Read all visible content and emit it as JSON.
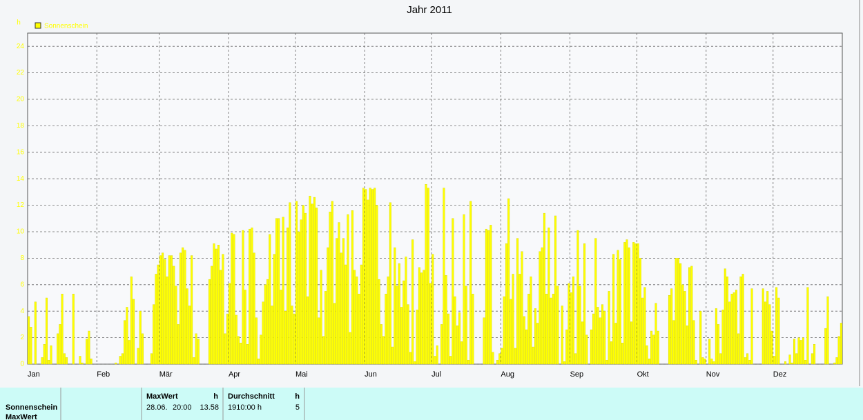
{
  "chart_data": {
    "type": "bar",
    "title": "Jahr 2011",
    "y_unit": "h",
    "legend": "Sonnenschein",
    "color": "#ffff00",
    "categories": [
      "Jan",
      "Feb",
      "Mär",
      "Apr",
      "Mai",
      "Jun",
      "Jul",
      "Aug",
      "Sep",
      "Okt",
      "Nov",
      "Dez"
    ],
    "values": [
      [
        3.6,
        2.8,
        0,
        4.7,
        0,
        0,
        0.5,
        1.5,
        5,
        0.3,
        1.4,
        0,
        0,
        2.3,
        3,
        5.3,
        0.8,
        0.5,
        0,
        0,
        5.3,
        0,
        0,
        0.6,
        0.1,
        0,
        1.9,
        2.5,
        0.4,
        0,
        0
      ],
      [
        0,
        0,
        0,
        0,
        0,
        0,
        0,
        0,
        0.1,
        0,
        0.6,
        0.8,
        3.3,
        4.3,
        1.8,
        6.6,
        4.9,
        0,
        1.2,
        4,
        2.3,
        0,
        0,
        0,
        0.8,
        4.5,
        6.8,
        7.5
      ],
      [
        8.2,
        8.4,
        7.9,
        6.6,
        8.2,
        8.2,
        7.4,
        5.9,
        3,
        8.4,
        8.8,
        8.6,
        5.7,
        4.4,
        8.2,
        0.5,
        2.3,
        1.9,
        0,
        0,
        0,
        0,
        6.4,
        7.4,
        9.1,
        8.7,
        9,
        7.1,
        8.3,
        2.3,
        3.8
      ],
      [
        6.1,
        9.9,
        9.8,
        3.7,
        2.1,
        1.6,
        10.1,
        5.6,
        1.5,
        10.2,
        10.3,
        8.4,
        3.5,
        0.4,
        2.2,
        4.7,
        6,
        6.4,
        9.8,
        4.4,
        8.3,
        11,
        11,
        5.6,
        11.1,
        4,
        10.3,
        12.2,
        4.4,
        3.8
      ],
      [
        12.3,
        10,
        10.9,
        12,
        11.4,
        5.1,
        12.7,
        12.1,
        12.6,
        11.8,
        3.5,
        7.1,
        2.1,
        5.5,
        8.8,
        11.5,
        12.3,
        4.6,
        9.5,
        10.7,
        8.4,
        9.5,
        7.5,
        11.3,
        2.4,
        11.6,
        7.1,
        6.6,
        5.3,
        7.5,
        13.3
      ],
      [
        13.2,
        12.4,
        13.3,
        13.2,
        13.3,
        12,
        6.4,
        3,
        2.1,
        5.3,
        6.6,
        12.2,
        1.3,
        8.8,
        5.9,
        7.6,
        4.3,
        6.3,
        8.1,
        4.5,
        0.9,
        9.4,
        0.2,
        4.1,
        7.3,
        6.9,
        7.1,
        13.58,
        13.3,
        6.1
      ],
      [
        8.3,
        0.6,
        1.4,
        0,
        3,
        13.3,
        6.7,
        3.8,
        0.6,
        11,
        5.1,
        2.9,
        3.9,
        1.7,
        11.3,
        5.9,
        0.3,
        12.3,
        5.3,
        0,
        0,
        0,
        0,
        3.5,
        10.2,
        10.1,
        10.5,
        0.9,
        0,
        0.3,
        0.8
      ],
      [
        1.2,
        5.1,
        9.1,
        12.5,
        4.9,
        6.8,
        1.2,
        9.5,
        6.8,
        8.5,
        3.6,
        2.6,
        5.3,
        6.6,
        1.3,
        4.2,
        3.1,
        8.5,
        8.8,
        11.4,
        5.3,
        10.3,
        5,
        5.3,
        11.2,
        5.9,
        0,
        4.4,
        0.2,
        2.6,
        6.1
      ],
      [
        5.4,
        6.6,
        0.8,
        10.1,
        5.9,
        3.2,
        9.1,
        2.2,
        0,
        2.6,
        3.8,
        9.5,
        4.3,
        3.5,
        4.5,
        4,
        0.3,
        5.5,
        1.7,
        8.3,
        3.1,
        8.6,
        7.9,
        1.6,
        9.2,
        9.4,
        8.8,
        3.2,
        9.2,
        9.1
      ],
      [
        9.1,
        8,
        5,
        5.8,
        1.4,
        0.4,
        2.5,
        2.2,
        4.6,
        2.5,
        0,
        0,
        0,
        0,
        5.2,
        5.7,
        3.3,
        8,
        8,
        7.6,
        6,
        5.5,
        2.9,
        7.3,
        7.4,
        3.3,
        0.3,
        0,
        4,
        0.5,
        0.4
      ],
      [
        0,
        1.9,
        0.4,
        0.2,
        4.2,
        3,
        0.8,
        4.1,
        7.2,
        6.6,
        4.7,
        5.3,
        5.4,
        5.6,
        2.3,
        6.6,
        6.8,
        0.5,
        0.8,
        0.3,
        5.7,
        0,
        0,
        0,
        0,
        5.7,
        4.7,
        5.5,
        4.5,
        2.5
      ],
      [
        0.6,
        5.8,
        5,
        0,
        0,
        0.2,
        0,
        0.7,
        0.1,
        1.9,
        0.8,
        2,
        1.8,
        2,
        0.3,
        5.8,
        0,
        0.8,
        1.5,
        0,
        0,
        0,
        0,
        2.7,
        5.1,
        0,
        0,
        0.1,
        0.5,
        2.1,
        3.1
      ]
    ],
    "ylim": [
      0,
      25
    ],
    "yticks": [
      0,
      2,
      4,
      6,
      8,
      10,
      12,
      14,
      16,
      18,
      20,
      22,
      24
    ],
    "grid": true
  },
  "stats": {
    "row_labels": [
      "Sonnenschein",
      "MaxWert"
    ],
    "max_header": "MaxWert",
    "max_unit": "h",
    "max_date": "28.06.",
    "max_time": "20:00",
    "max_value": 13.58,
    "avg_header": "Durchschnitt",
    "avg_unit": "h",
    "avg_total": "1910:00 h",
    "avg_value": 5
  }
}
